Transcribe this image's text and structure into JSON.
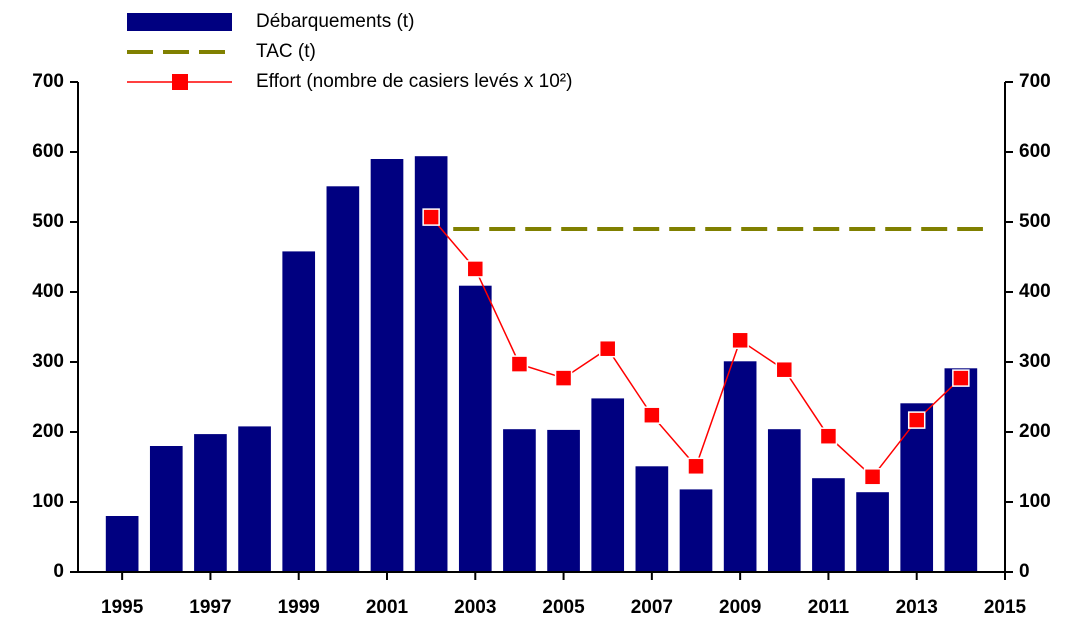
{
  "chart_data": {
    "type": "bar",
    "series": [
      {
        "name": "Débarquements (t)",
        "type": "bar",
        "color": "#000080",
        "x": [
          1995,
          1996,
          1997,
          1998,
          1999,
          2000,
          2001,
          2002,
          2003,
          2004,
          2005,
          2006,
          2007,
          2008,
          2009,
          2010,
          2011,
          2012,
          2013,
          2014
        ],
        "values": [
          80,
          180,
          197,
          208,
          458,
          551,
          590,
          594,
          409,
          204,
          203,
          248,
          151,
          118,
          301,
          204,
          134,
          114,
          241,
          291
        ]
      },
      {
        "name": "TAC (t)",
        "type": "line",
        "dashed": true,
        "color": "#808000",
        "x": [
          2002.5,
          2014.5
        ],
        "values": [
          490,
          490
        ]
      },
      {
        "name": "Effort (nombre de casiers levés x 10²)",
        "type": "line",
        "marker": "square",
        "color": "#ff0000",
        "axis": "y2",
        "x": [
          2002,
          2003,
          2004,
          2005,
          2006,
          2007,
          2008,
          2009,
          2010,
          2011,
          2012,
          2013,
          2014
        ],
        "values": [
          507,
          433,
          297,
          277,
          319,
          224,
          151,
          331,
          289,
          194,
          136,
          217,
          277
        ]
      }
    ],
    "xlim": [
      1994,
      2015
    ],
    "xticks": [
      1995,
      1997,
      1999,
      2001,
      2003,
      2005,
      2007,
      2009,
      2011,
      2013,
      2015
    ],
    "ylim": [
      0,
      700
    ],
    "yticks": [
      0,
      100,
      200,
      300,
      400,
      500,
      600,
      700
    ],
    "y2lim": [
      0,
      700
    ],
    "y2ticks": [
      0,
      100,
      200,
      300,
      400,
      500,
      600,
      700
    ]
  }
}
